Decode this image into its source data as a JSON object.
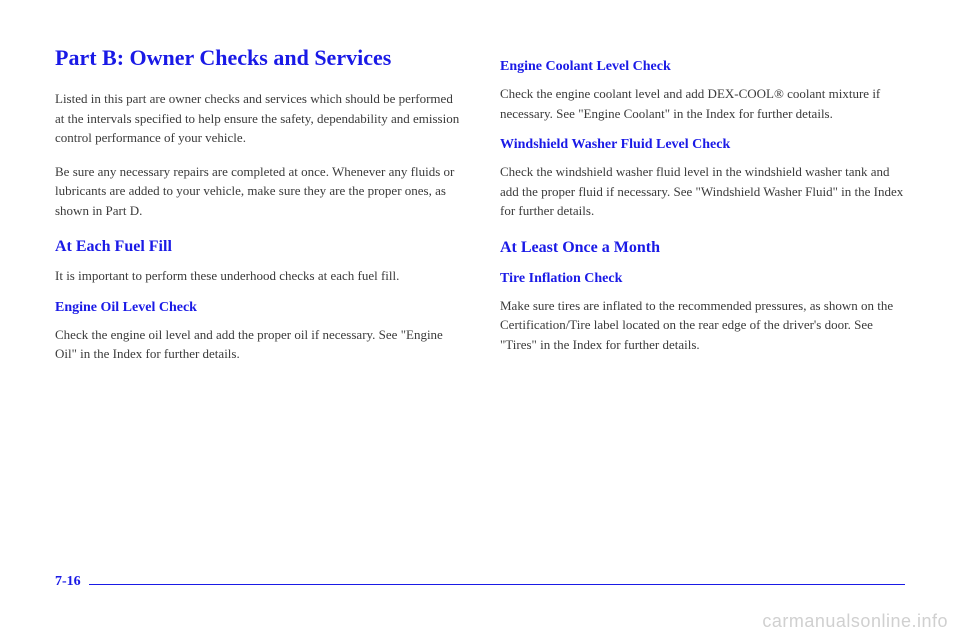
{
  "left": {
    "mainHeading": "Part B: Owner Checks and Services",
    "intro1": "Listed in this part are owner checks and services which should be performed at the intervals specified to help ensure the safety, dependability and emission control performance of your vehicle.",
    "intro2": "Be sure any necessary repairs are completed at once. Whenever any fluids or lubricants are added to your vehicle, make sure they are the proper ones, as shown in Part D.",
    "fuelHeading": "At Each Fuel Fill",
    "fuelNote": "It is important to perform these underhood checks at each fuel fill.",
    "oilHeading": "Engine Oil Level Check",
    "oilText": "Check the engine oil level and add the proper oil if necessary. See \"Engine Oil\" in the Index for further details."
  },
  "right": {
    "coolantHeading": "Engine Coolant Level Check",
    "coolantText": "Check the engine coolant level and add DEX-COOL® coolant mixture if necessary. See \"Engine Coolant\" in the Index for further details.",
    "washerHeading": "Windshield Washer Fluid Level Check",
    "washerText": "Check the windshield washer fluid level in the windshield washer tank and add the proper fluid if necessary. See \"Windshield Washer Fluid\" in the Index for further details.",
    "monthHeading": "At Least Once a Month",
    "tireHeading": "Tire Inflation Check",
    "tireText": "Make sure tires are inflated to the recommended pressures, as shown on the Certification/Tire label located on the rear edge of the driver's door. See \"Tires\" in the Index for further details."
  },
  "pageNum": "7-16",
  "watermark": "carmanualsonline.info",
  "colors": {
    "heading": "#1a1ae6",
    "body": "#3a3a3a",
    "watermark": "#d0d0d0",
    "background": "#ffffff"
  }
}
